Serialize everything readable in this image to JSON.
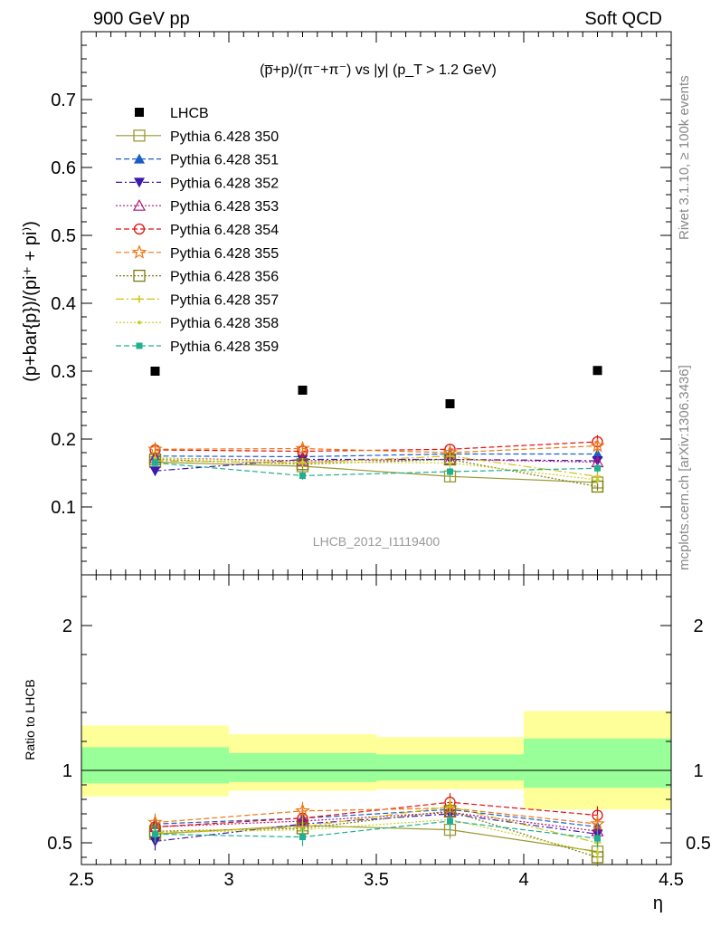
{
  "header": {
    "left": "900 GeV pp",
    "right": "Soft QCD"
  },
  "plot_title": "(p̅+p)/(π⁻+π⁻) vs |y| (p_T > 1.2 GeV)",
  "side_labels": {
    "rivet": "Rivet 3.1.10, ≥ 100k events",
    "mcplots": "mcplots.cern.ch [arXiv:1306.3436]"
  },
  "watermark": "LHCB_2012_I1119400",
  "chart_data": [
    {
      "type": "scatter",
      "panel": "main",
      "ylabel": "(p+bar{p})/(pi⁺ + pi⁾)",
      "xlim": [
        2.5,
        4.5
      ],
      "ylim": [
        0,
        0.8
      ],
      "yticks": [
        "0.1",
        "0.2",
        "0.3",
        "0.4",
        "0.5",
        "0.6",
        "0.7"
      ],
      "x": [
        2.75,
        3.25,
        3.75,
        4.25
      ],
      "series": [
        {
          "name": "LHCB",
          "values": [
            0.3,
            0.272,
            0.252,
            0.301
          ],
          "color": "#000000",
          "marker": "square-filled",
          "dash": "",
          "errors": [
            0,
            0,
            0,
            0
          ]
        },
        {
          "name": "Pythia 6.428 350",
          "values": [
            0.166,
            0.16,
            0.145,
            0.136
          ],
          "color": "#999933",
          "marker": "square-open",
          "dash": "",
          "errors": [
            0.009,
            0.009,
            0.009,
            0.009
          ]
        },
        {
          "name": "Pythia 6.428 351",
          "values": [
            0.175,
            0.174,
            0.178,
            0.178
          ],
          "color": "#1a5fc7",
          "marker": "triangle-filled",
          "dash": "6,3",
          "errors": [
            0.006,
            0.006,
            0.006,
            0.006
          ]
        },
        {
          "name": "Pythia 6.428 352",
          "values": [
            0.153,
            0.17,
            0.17,
            0.168
          ],
          "color": "#3b1aa8",
          "marker": "triangle-down-filled",
          "dash": "7,3,2,3",
          "errors": [
            0.006,
            0.006,
            0.006,
            0.006
          ]
        },
        {
          "name": "Pythia 6.428 353",
          "values": [
            0.172,
            0.168,
            0.17,
            0.166
          ],
          "color": "#b0147a",
          "marker": "triangle-open",
          "dash": "2,2",
          "errors": [
            0.006,
            0.006,
            0.006,
            0.006
          ]
        },
        {
          "name": "Pythia 6.428 354",
          "values": [
            0.184,
            0.182,
            0.185,
            0.196
          ],
          "color": "#e01010",
          "marker": "circle-open",
          "dash": "6,3",
          "errors": [
            0.006,
            0.006,
            0.006,
            0.01
          ]
        },
        {
          "name": "Pythia 6.428 355",
          "values": [
            0.185,
            0.186,
            0.18,
            0.19
          ],
          "color": "#ee7711",
          "marker": "star-open",
          "dash": "6,3",
          "errors": [
            0.006,
            0.006,
            0.006,
            0.01
          ]
        },
        {
          "name": "Pythia 6.428 356",
          "values": [
            0.17,
            0.163,
            0.17,
            0.13
          ],
          "color": "#7a7a10",
          "marker": "square-open",
          "dash": "2,2",
          "errors": [
            0.006,
            0.006,
            0.006,
            0.006
          ]
        },
        {
          "name": "Pythia 6.428 357",
          "values": [
            0.168,
            0.165,
            0.175,
            0.145
          ],
          "color": "#d4c010",
          "marker": "plus",
          "dash": "9,3,2,3",
          "errors": [
            0.006,
            0.006,
            0.006,
            0.006
          ]
        },
        {
          "name": "Pythia 6.428 358",
          "values": [
            0.172,
            0.166,
            0.165,
            0.14
          ],
          "color": "#c8d020",
          "marker": "dot",
          "dash": "2,2",
          "errors": [
            0.006,
            0.006,
            0.006,
            0.006
          ]
        },
        {
          "name": "Pythia 6.428 359",
          "values": [
            0.165,
            0.146,
            0.152,
            0.157
          ],
          "color": "#20b090",
          "marker": "square-filled-small",
          "dash": "6,3",
          "errors": [
            0.006,
            0.006,
            0.006,
            0.006
          ]
        }
      ]
    },
    {
      "type": "scatter",
      "panel": "ratio",
      "ylabel": "Ratio to LHCB",
      "xlabel": "η",
      "xlim": [
        2.5,
        4.5
      ],
      "ylim": [
        0.35,
        2.35
      ],
      "yticks": [
        "0.5",
        "1",
        "2"
      ],
      "xticks": [
        "2.5",
        "3",
        "3.5",
        "4",
        "4.5"
      ],
      "bands": [
        {
          "x0": 2.5,
          "x1": 3.0,
          "green": [
            0.91,
            1.16
          ],
          "yellow": [
            0.82,
            1.31
          ]
        },
        {
          "x0": 3.0,
          "x1": 3.5,
          "green": [
            0.92,
            1.12
          ],
          "yellow": [
            0.86,
            1.25
          ]
        },
        {
          "x0": 3.5,
          "x1": 4.0,
          "green": [
            0.93,
            1.11
          ],
          "yellow": [
            0.87,
            1.23
          ]
        },
        {
          "x0": 4.0,
          "x1": 4.5,
          "green": [
            0.88,
            1.22
          ],
          "yellow": [
            0.73,
            1.41
          ]
        }
      ],
      "x": [
        2.75,
        3.25,
        3.75,
        4.25
      ],
      "series": [
        {
          "name": "Pythia 6.428 350",
          "values": [
            0.56,
            0.62,
            0.59,
            0.44
          ]
        },
        {
          "name": "Pythia 6.428 351",
          "values": [
            0.63,
            0.67,
            0.73,
            0.61
          ]
        },
        {
          "name": "Pythia 6.428 352",
          "values": [
            0.51,
            0.63,
            0.7,
            0.56
          ]
        },
        {
          "name": "Pythia 6.428 353",
          "values": [
            0.61,
            0.65,
            0.71,
            0.58
          ]
        },
        {
          "name": "Pythia 6.428 354",
          "values": [
            0.61,
            0.67,
            0.78,
            0.69
          ]
        },
        {
          "name": "Pythia 6.428 355",
          "values": [
            0.64,
            0.72,
            0.74,
            0.63
          ]
        },
        {
          "name": "Pythia 6.428 356",
          "values": [
            0.58,
            0.6,
            0.72,
            0.4
          ]
        },
        {
          "name": "Pythia 6.428 357",
          "values": [
            0.57,
            0.61,
            0.75,
            0.5
          ]
        },
        {
          "name": "Pythia 6.428 358",
          "values": [
            0.57,
            0.59,
            0.66,
            0.43
          ]
        },
        {
          "name": "Pythia 6.428 359",
          "values": [
            0.56,
            0.54,
            0.65,
            0.53
          ]
        }
      ]
    }
  ]
}
